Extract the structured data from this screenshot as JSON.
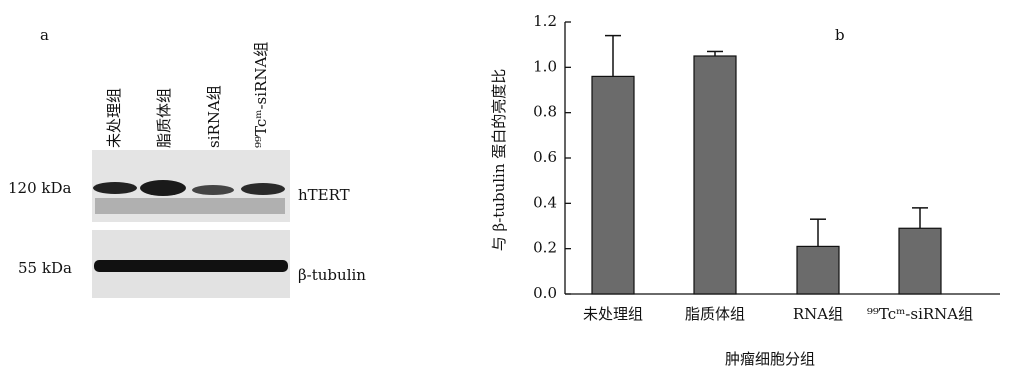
{
  "panel_a": {
    "label": "a",
    "lanes": [
      "未处理组",
      "脂质体组",
      "siRNA组",
      "⁹⁹Tcᵐ-siRNA组"
    ],
    "markers": [
      "120 kDa",
      "55 kDa"
    ],
    "bands": [
      "hTERT",
      "β-tubulin"
    ]
  },
  "chart_data": {
    "type": "bar",
    "annotation": "b",
    "x_label": "肿瘤细胞分组",
    "y_label": "与 β-tubulin 蛋白的亮度比",
    "categories": [
      "未处理组",
      "脂质体组",
      "RNA组",
      "⁹⁹Tcᵐ-siRNA组"
    ],
    "series": [
      {
        "color": "#6b6b6b",
        "values": [
          0.96,
          1.05,
          0.21,
          0.29
        ],
        "errors": [
          0.18,
          0.02,
          0.12,
          0.09
        ]
      }
    ],
    "ylim": [
      0,
      1.2
    ],
    "yticks": [
      {
        "value": 0,
        "label": "0.0"
      },
      0.2,
      0.4,
      0.6,
      0.8,
      {
        "value": 1,
        "label": "1.0"
      },
      1.2
    ]
  }
}
